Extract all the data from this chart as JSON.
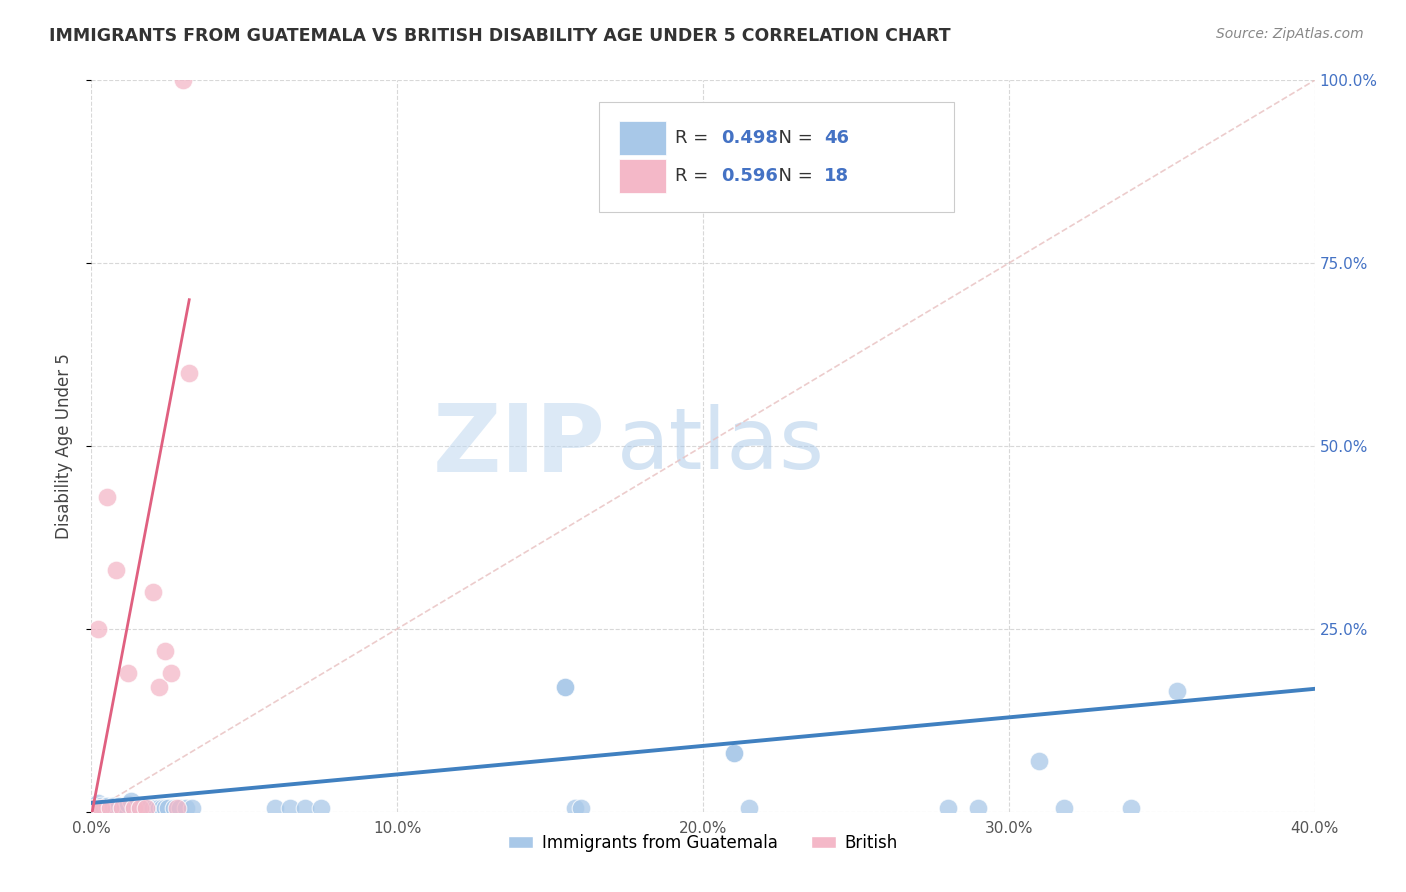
{
  "title": "IMMIGRANTS FROM GUATEMALA VS BRITISH DISABILITY AGE UNDER 5 CORRELATION CHART",
  "source": "Source: ZipAtlas.com",
  "xlabel_bottom": "Immigrants from Guatemala",
  "ylabel": "Disability Age Under 5",
  "legend_label_1": "Immigrants from Guatemala",
  "legend_label_2": "British",
  "R1": 0.498,
  "N1": 46,
  "R2": 0.596,
  "N2": 18,
  "xlim": [
    0.0,
    0.4
  ],
  "ylim": [
    0.0,
    1.0
  ],
  "xticks": [
    0.0,
    0.1,
    0.2,
    0.3,
    0.4
  ],
  "yticks": [
    0.0,
    0.25,
    0.5,
    0.75,
    1.0
  ],
  "xticklabels": [
    "0.0%",
    "10.0%",
    "20.0%",
    "30.0%",
    "40.0%"
  ],
  "yticklabels_right": [
    "",
    "25.0%",
    "50.0%",
    "75.0%",
    "100.0%"
  ],
  "color_blue": "#a8c8e8",
  "color_pink": "#f4b8c8",
  "trend_blue": "#4080c0",
  "trend_pink": "#e06080",
  "diag_color": "#e8c0c0",
  "blue_scatter_x": [
    0.001,
    0.002,
    0.003,
    0.004,
    0.005,
    0.006,
    0.007,
    0.008,
    0.009,
    0.01,
    0.011,
    0.012,
    0.013,
    0.014,
    0.015,
    0.016,
    0.017,
    0.018,
    0.019,
    0.02,
    0.021,
    0.022,
    0.023,
    0.024,
    0.025,
    0.027,
    0.029,
    0.031,
    0.033,
    0.06,
    0.065,
    0.07,
    0.075,
    0.155,
    0.158,
    0.21,
    0.28,
    0.29,
    0.155,
    0.16,
    0.21,
    0.215,
    0.31,
    0.318,
    0.34,
    0.355
  ],
  "blue_scatter_y": [
    0.008,
    0.012,
    0.008,
    0.005,
    0.008,
    0.005,
    0.008,
    0.005,
    0.008,
    0.005,
    0.008,
    0.01,
    0.015,
    0.005,
    0.008,
    0.005,
    0.008,
    0.005,
    0.005,
    0.005,
    0.005,
    0.005,
    0.005,
    0.005,
    0.005,
    0.005,
    0.005,
    0.005,
    0.005,
    0.005,
    0.005,
    0.005,
    0.005,
    0.17,
    0.005,
    0.08,
    0.005,
    0.005,
    0.17,
    0.005,
    0.08,
    0.005,
    0.07,
    0.005,
    0.005,
    0.165
  ],
  "pink_scatter_x": [
    0.001,
    0.002,
    0.003,
    0.005,
    0.006,
    0.008,
    0.01,
    0.012,
    0.014,
    0.016,
    0.018,
    0.02,
    0.022,
    0.024,
    0.026,
    0.028,
    0.03,
    0.032
  ],
  "pink_scatter_y": [
    0.005,
    0.25,
    0.005,
    0.43,
    0.005,
    0.33,
    0.005,
    0.19,
    0.005,
    0.005,
    0.005,
    0.3,
    0.17,
    0.22,
    0.19,
    0.005,
    1.0,
    0.6
  ],
  "watermark_zip": "ZIP",
  "watermark_atlas": "atlas",
  "background_color": "#ffffff",
  "grid_color": "#d8d8d8"
}
